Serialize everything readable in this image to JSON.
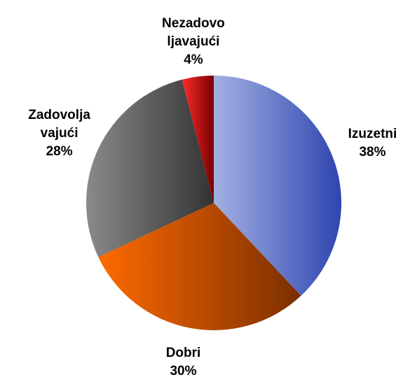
{
  "chart_data": {
    "type": "pie",
    "categories": [
      "Izuzetni",
      "Dobri",
      "Zadovolja\nvajući",
      "Nezadovo\nljavajući"
    ],
    "values": [
      38,
      30,
      28,
      4
    ],
    "value_labels": [
      "38%",
      "30%",
      "28%",
      "4%"
    ],
    "colors": [
      "#2e45b0",
      "#7a2e00",
      "#333333",
      "#7a0000"
    ]
  }
}
